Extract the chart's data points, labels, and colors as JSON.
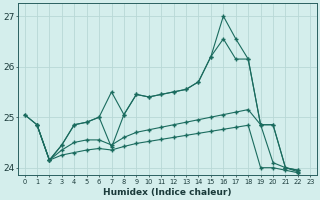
{
  "xlabel": "Humidex (Indice chaleur)",
  "bg_color": "#d4eeec",
  "grid_color": "#b8d8d6",
  "line_color": "#1a6b5e",
  "xlim": [
    -0.5,
    23.5
  ],
  "ylim": [
    23.85,
    27.25
  ],
  "yticks": [
    24,
    25,
    26,
    27
  ],
  "xticks": [
    0,
    1,
    2,
    3,
    4,
    5,
    6,
    7,
    8,
    9,
    10,
    11,
    12,
    13,
    14,
    15,
    16,
    17,
    18,
    19,
    20,
    21,
    22,
    23
  ],
  "line1_x": [
    0,
    1,
    2,
    3,
    4,
    5,
    6,
    7,
    8,
    9,
    10,
    11,
    12,
    13,
    14,
    15,
    16,
    17,
    18,
    19,
    20,
    21,
    22
  ],
  "line1_y": [
    25.05,
    24.85,
    24.15,
    24.45,
    24.85,
    24.9,
    25.0,
    25.5,
    25.05,
    25.45,
    25.4,
    25.45,
    25.5,
    25.55,
    25.7,
    26.2,
    27.0,
    26.55,
    26.15,
    24.85,
    24.85,
    24.0,
    23.95
  ],
  "line2_x": [
    0,
    1,
    2,
    3,
    4,
    5,
    6,
    7,
    8,
    9,
    10,
    11,
    12,
    13,
    14,
    15,
    16,
    17,
    18,
    19,
    20,
    21,
    22
  ],
  "line2_y": [
    25.05,
    24.85,
    24.15,
    24.45,
    24.85,
    24.9,
    25.0,
    24.4,
    25.05,
    25.45,
    25.4,
    25.45,
    25.5,
    25.55,
    25.7,
    26.2,
    26.55,
    26.15,
    26.15,
    24.85,
    24.85,
    24.0,
    23.95
  ],
  "line3_x": [
    1,
    2,
    3,
    4,
    5,
    6,
    7,
    8,
    9,
    10,
    11,
    12,
    13,
    14,
    15,
    16,
    17,
    18,
    19,
    20,
    21,
    22
  ],
  "line3_y": [
    24.85,
    24.15,
    24.35,
    24.5,
    24.55,
    24.55,
    24.45,
    24.6,
    24.7,
    24.75,
    24.8,
    24.85,
    24.9,
    24.95,
    25.0,
    25.05,
    25.1,
    25.15,
    24.85,
    24.1,
    24.0,
    23.92
  ],
  "line4_x": [
    1,
    2,
    3,
    4,
    5,
    6,
    7,
    8,
    9,
    10,
    11,
    12,
    13,
    14,
    15,
    16,
    17,
    18,
    19,
    20,
    21,
    22
  ],
  "line4_y": [
    24.85,
    24.15,
    24.25,
    24.3,
    24.35,
    24.38,
    24.35,
    24.42,
    24.48,
    24.52,
    24.56,
    24.6,
    24.64,
    24.68,
    24.72,
    24.76,
    24.8,
    24.84,
    24.0,
    24.0,
    23.95,
    23.9
  ]
}
